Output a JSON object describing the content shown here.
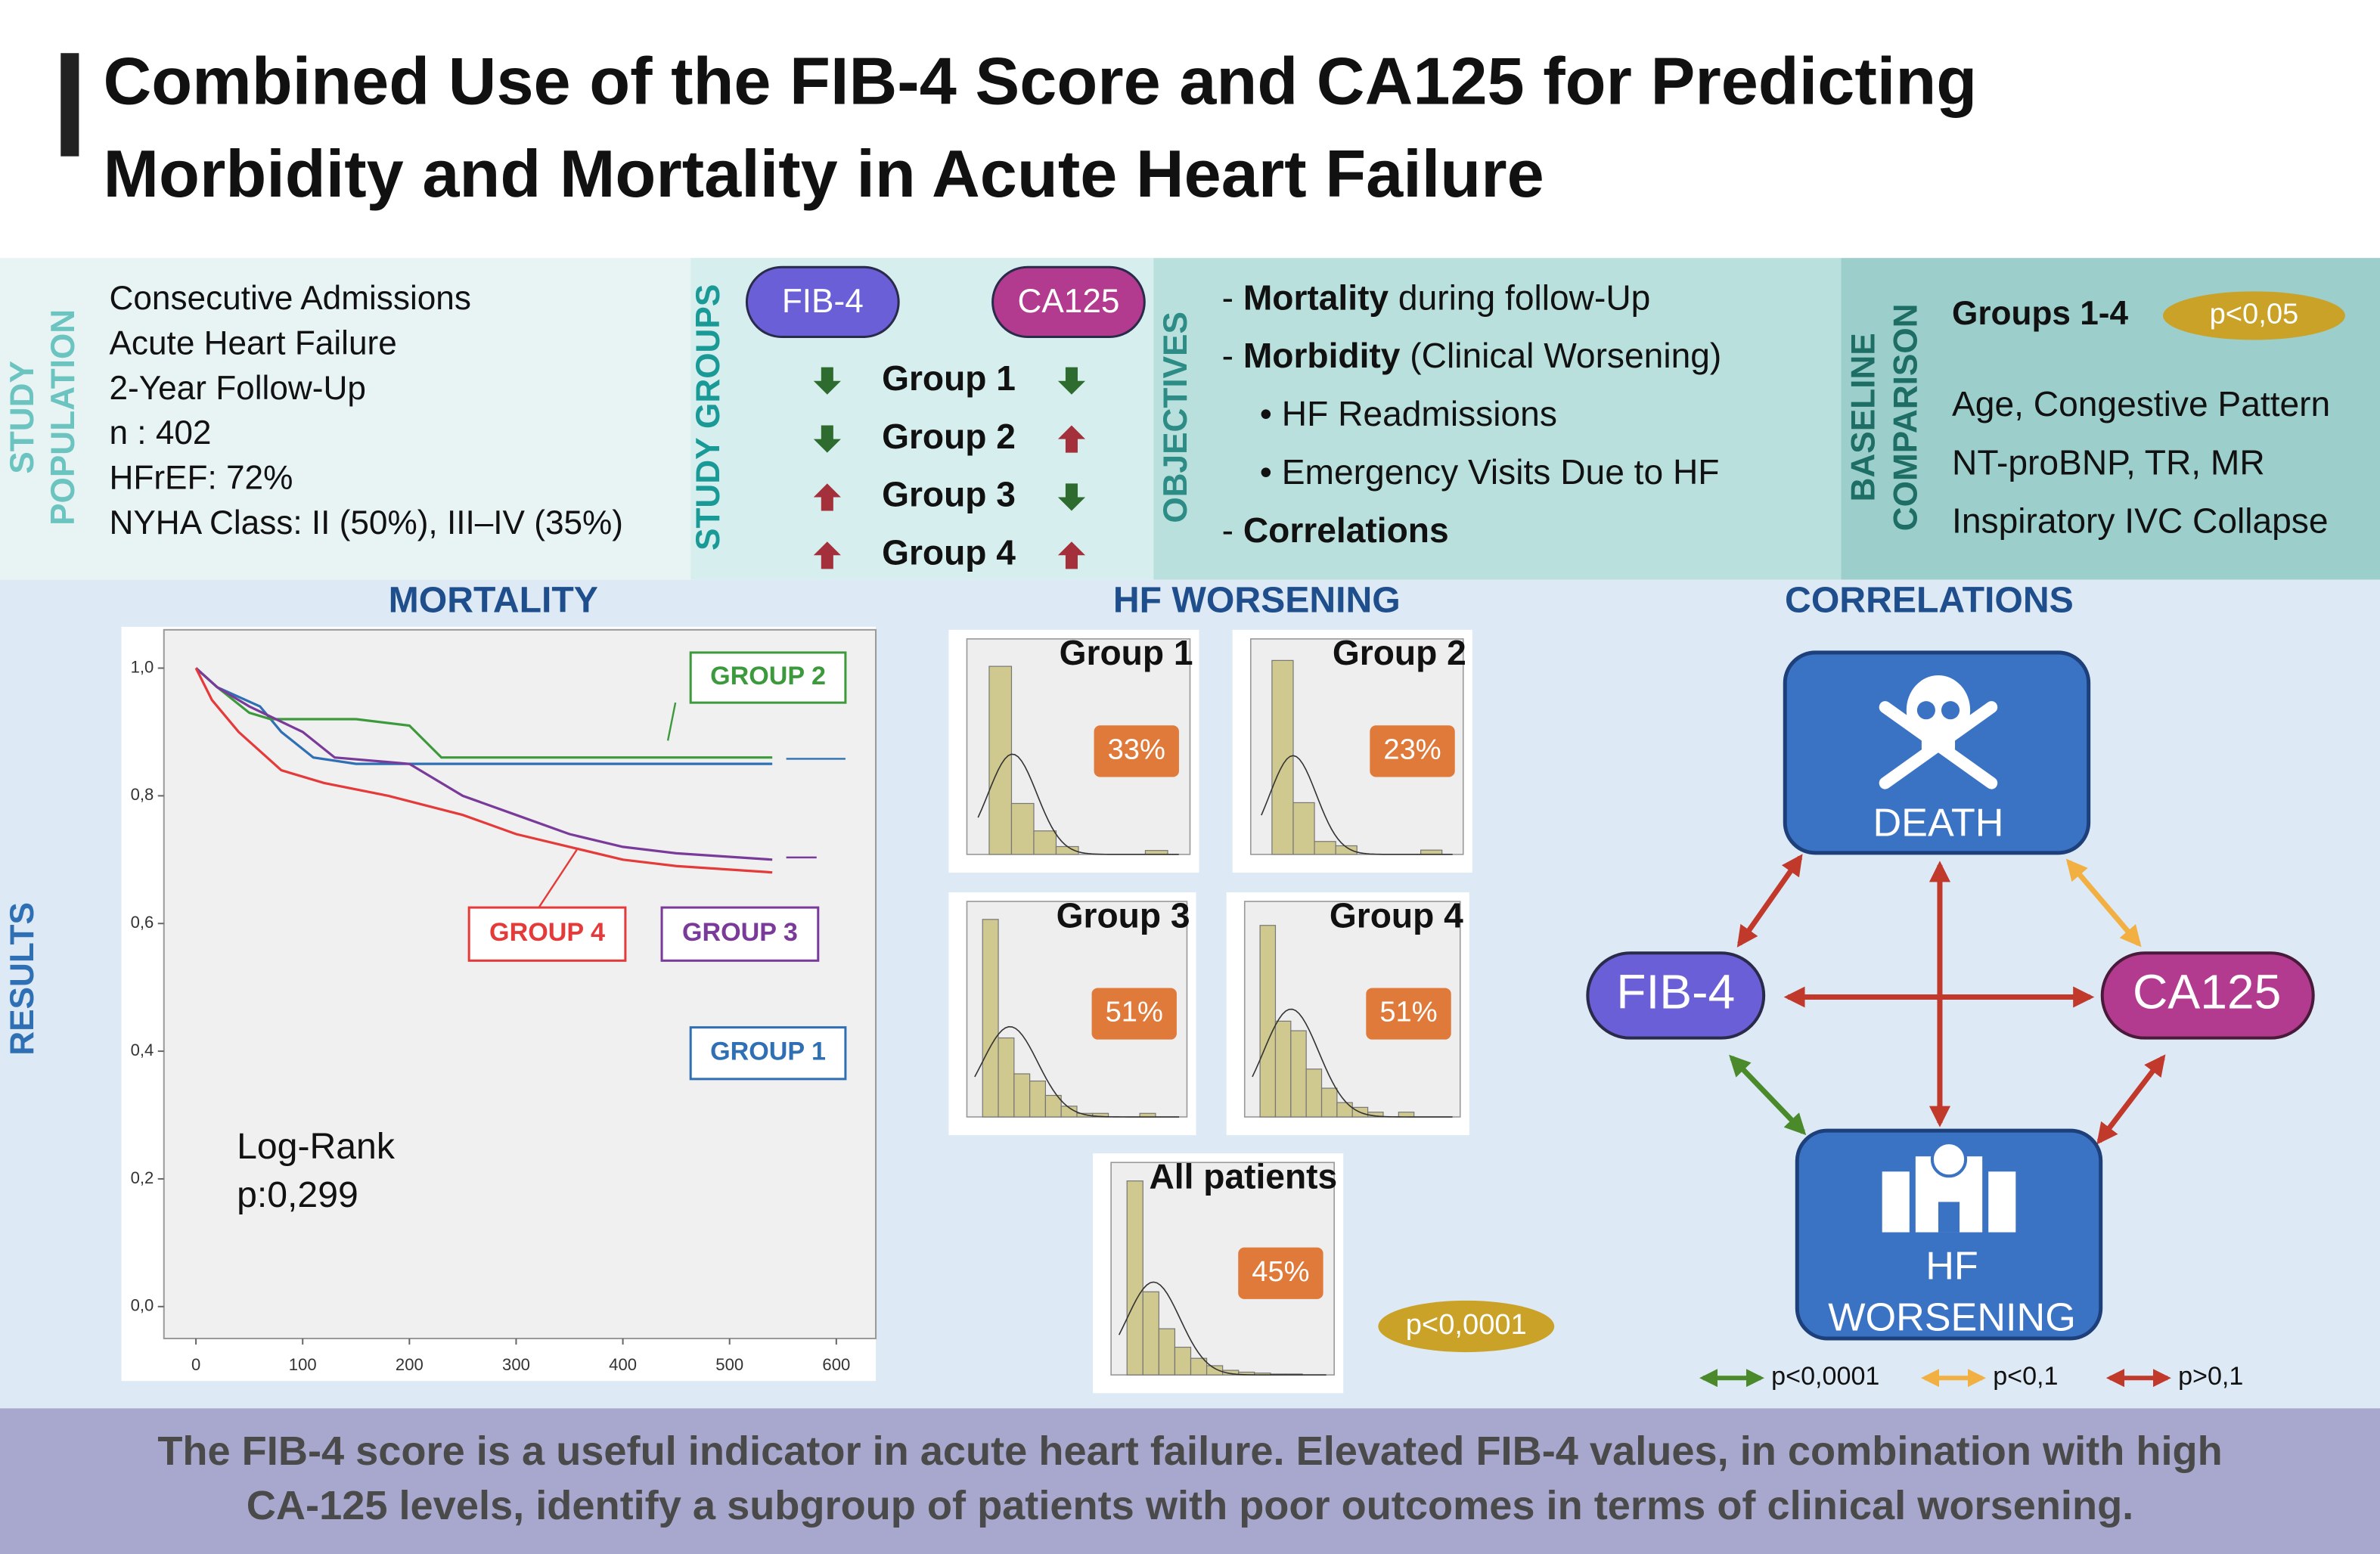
{
  "title": [
    "Combined Use of the FIB-4 Score and CA125 for Predicting",
    "Morbidity and Mortality in Acute Heart Failure"
  ],
  "study_population": {
    "label": [
      "STUDY",
      "POPULATION"
    ],
    "items": [
      "Consecutive Admissions",
      "Acute Heart Failure",
      "2-Year Follow-Up",
      "n : 402",
      "HFrEF: 72%",
      "NYHA Class: II (50%), III–IV (35%)"
    ]
  },
  "study_groups": {
    "label": "STUDY GROUPS",
    "markers": [
      {
        "name": "FIB-4",
        "color": "#6a5fd6"
      },
      {
        "name": "CA125",
        "color": "#b23a8f"
      }
    ],
    "arrow_colors": {
      "down": "#2e6b2e",
      "up": "#a3303b"
    },
    "groups": [
      {
        "name": "Group 1",
        "fib4": "down",
        "ca125": "down"
      },
      {
        "name": "Group 2",
        "fib4": "down",
        "ca125": "up"
      },
      {
        "name": "Group 3",
        "fib4": "up",
        "ca125": "down"
      },
      {
        "name": "Group 4",
        "fib4": "up",
        "ca125": "up"
      }
    ]
  },
  "objectives": {
    "label": "OBJECTIVES",
    "items": [
      {
        "indent": false,
        "parts": [
          {
            "text": "- "
          },
          {
            "text": "Mortality",
            "bold": true
          },
          {
            "text": " during follow-Up"
          }
        ]
      },
      {
        "indent": false,
        "parts": [
          {
            "text": "- "
          },
          {
            "text": "Morbidity",
            "bold": true
          },
          {
            "text": " (Clinical Worsening)"
          }
        ]
      },
      {
        "indent": true,
        "parts": [
          {
            "text": "• HF Readmissions"
          }
        ]
      },
      {
        "indent": true,
        "parts": [
          {
            "text": "• Emergency Visits Due to HF"
          }
        ]
      },
      {
        "indent": false,
        "parts": [
          {
            "text": "- "
          },
          {
            "text": "Correlations",
            "bold": true
          }
        ]
      }
    ]
  },
  "baseline": {
    "label": [
      "BASELINE",
      "COMPARISON"
    ],
    "heading": "Groups 1-4",
    "badge": "p<0,05",
    "items": [
      "Age, Congestive Pattern",
      "NT-proBNP, TR, MR",
      "Inspiratory IVC Collapse"
    ]
  },
  "results_label": "RESULTS",
  "chart_data": [
    {
      "type": "line",
      "title": "MORTALITY",
      "xlim": [
        -30,
        637
      ],
      "ylim": [
        -0.05,
        1.06
      ],
      "xticks": [
        0,
        100,
        200,
        300,
        400,
        500,
        600
      ],
      "yticks": [
        {
          "value": 1.0,
          "label": "1,0"
        },
        {
          "value": 0.8,
          "label": "0,8"
        },
        {
          "value": 0.6,
          "label": "0,6"
        },
        {
          "value": 0.4,
          "label": "0,4"
        },
        {
          "value": 0.2,
          "label": "0,2"
        },
        {
          "value": 0,
          "label": "0,0"
        }
      ],
      "series": [
        {
          "name": "GROUP 1",
          "color": "#2f6fb4",
          "x": [
            0,
            20,
            60,
            80,
            110,
            150,
            250,
            540
          ],
          "values": [
            1,
            0.97,
            0.94,
            0.9,
            0.86,
            0.85,
            0.85,
            0.85
          ]
        },
        {
          "name": "GROUP 2",
          "color": "#3c9a3c",
          "x": [
            0,
            20,
            50,
            70,
            150,
            200,
            230,
            300,
            540
          ],
          "values": [
            1,
            0.97,
            0.93,
            0.92,
            0.92,
            0.91,
            0.86,
            0.86,
            0.86
          ]
        },
        {
          "name": "GROUP 3",
          "color": "#7a3a9a",
          "x": [
            0,
            20,
            50,
            100,
            130,
            200,
            250,
            300,
            350,
            400,
            450,
            540
          ],
          "values": [
            1,
            0.97,
            0.94,
            0.9,
            0.86,
            0.85,
            0.8,
            0.77,
            0.74,
            0.72,
            0.71,
            0.7
          ]
        },
        {
          "name": "GROUP 4",
          "color": "#e53a3a",
          "x": [
            0,
            15,
            40,
            80,
            120,
            180,
            250,
            300,
            350,
            400,
            450,
            540
          ],
          "values": [
            1,
            0.95,
            0.9,
            0.84,
            0.82,
            0.8,
            0.77,
            0.74,
            0.72,
            0.7,
            0.69,
            0.68
          ]
        }
      ],
      "annotations": [
        "Log-Rank",
        "p:0,299"
      ]
    },
    {
      "type": "histogram",
      "title": "Group 1",
      "badge": "33%",
      "bins": [
        0,
        1,
        2,
        3,
        4,
        5,
        6,
        7,
        8
      ],
      "values": [
        48,
        13,
        6,
        2,
        0,
        0,
        0,
        1
      ],
      "xlim": [
        -1,
        9
      ],
      "ylim": [
        0,
        55
      ],
      "color": "#cfc88f"
    },
    {
      "type": "histogram",
      "title": "Group 2",
      "badge": "23%",
      "bins": [
        0,
        1,
        2,
        3,
        4,
        5,
        6,
        7,
        8
      ],
      "values": [
        45,
        12,
        3,
        2,
        0,
        0,
        0,
        1
      ],
      "xlim": [
        -1,
        9
      ],
      "ylim": [
        0,
        50
      ],
      "color": "#cfc88f"
    },
    {
      "type": "histogram",
      "title": "Group 3",
      "badge": "51%",
      "bins": [
        0,
        1,
        2,
        3,
        4,
        5,
        6,
        7,
        8,
        9,
        10,
        11,
        12
      ],
      "values": [
        55,
        22,
        12,
        10,
        6,
        3,
        1,
        1,
        0,
        0,
        1,
        0
      ],
      "xlim": [
        -1,
        13
      ],
      "ylim": [
        0,
        60
      ],
      "color": "#cfc88f"
    },
    {
      "type": "histogram",
      "title": "Group 4",
      "badge": "51%",
      "bins": [
        0,
        1,
        2,
        3,
        4,
        5,
        6,
        7,
        8,
        9,
        10,
        11,
        12
      ],
      "values": [
        40,
        20,
        18,
        10,
        6,
        3,
        2,
        1,
        0,
        1,
        0,
        0
      ],
      "xlim": [
        -1,
        13
      ],
      "ylim": [
        0,
        45
      ],
      "color": "#cfc88f"
    },
    {
      "type": "histogram",
      "title": "All patients",
      "badge": "45%",
      "bins": [
        0,
        1,
        2,
        3,
        4,
        5,
        6,
        7,
        8,
        9,
        10,
        11,
        12
      ],
      "values": [
        210,
        90,
        50,
        30,
        18,
        10,
        5,
        3,
        2,
        1,
        1,
        0
      ],
      "xlim": [
        -1,
        13
      ],
      "ylim": [
        0,
        230
      ],
      "color": "#cfc88f"
    }
  ],
  "hf_worsening": {
    "title": "HF WORSENING",
    "badge": "p<0,0001"
  },
  "correlations": {
    "title": "CORRELATIONS",
    "nodes": {
      "death": [
        "DEATH"
      ],
      "fib4": "FIB-4",
      "ca125": "CA125",
      "hf": [
        "HF",
        "WORSENING"
      ]
    },
    "edges": [
      {
        "from": "death",
        "to": "fib4",
        "color": "#c0392b"
      },
      {
        "from": "death",
        "to": "ca125",
        "color": "#f2b042"
      },
      {
        "from": "death",
        "to": "hf",
        "color": "#c0392b"
      },
      {
        "from": "fib4",
        "to": "ca125",
        "color": "#c0392b"
      },
      {
        "from": "fib4",
        "to": "hf",
        "color": "#4a8a2a"
      },
      {
        "from": "ca125",
        "to": "hf",
        "color": "#c0392b"
      }
    ],
    "legend": [
      {
        "label": "p<0,0001",
        "color": "#4a8a2a"
      },
      {
        "label": "p<0,1",
        "color": "#f2b042"
      },
      {
        "label": "p>0,1",
        "color": "#c0392b"
      }
    ]
  },
  "conclusion": [
    "The FIB-4 score is a useful indicator in acute heart failure. Elevated FIB-4 values, in combination with high",
    "CA-125 levels, identify a subgroup of patients with poor outcomes in terms of clinical worsening."
  ]
}
